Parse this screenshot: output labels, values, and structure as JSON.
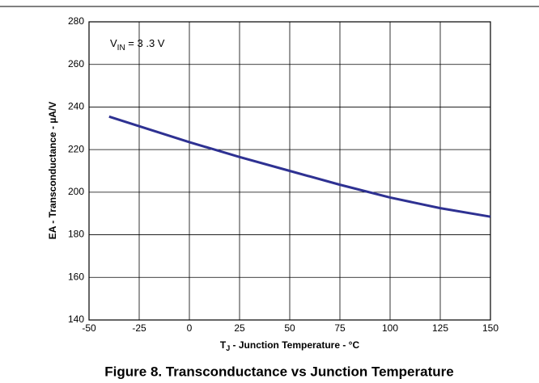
{
  "chart_data": {
    "type": "line",
    "title": "Figure 8. Transconductance vs Junction Temperature",
    "x_label": {
      "base": "T",
      "sub": "J",
      "rest": " - Junction Temperature - °C"
    },
    "y_label": "EA - Transconductance - µA/V",
    "annotation": {
      "base": "V",
      "sub": "IN",
      "rest": " = 3 .3 V"
    },
    "x": [
      -40,
      -25,
      0,
      25,
      50,
      75,
      100,
      125,
      150
    ],
    "series": [
      {
        "name": "Transconductance",
        "color": "#2e3192",
        "values": [
          235.5,
          231,
          223.5,
          216.5,
          210,
          203.5,
          197.5,
          192.5,
          188.5
        ]
      }
    ],
    "xlim": [
      -50,
      150
    ],
    "xticks": [
      -50,
      -25,
      0,
      25,
      50,
      75,
      100,
      125,
      150
    ],
    "ylim": [
      140,
      280
    ],
    "yticks": [
      140,
      160,
      180,
      200,
      220,
      240,
      260,
      280
    ],
    "grid": true
  }
}
